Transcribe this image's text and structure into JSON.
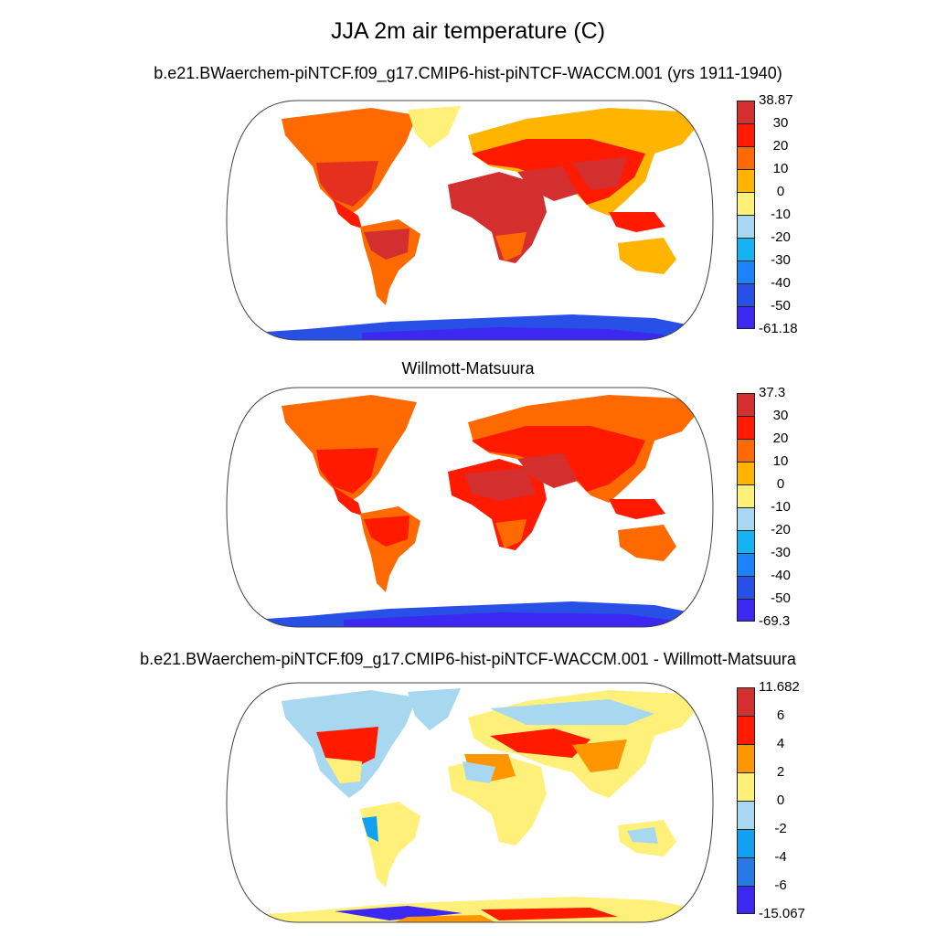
{
  "title": "JJA 2m air temperature (C)",
  "panels": [
    {
      "title": "b.e21.BWaerchem-piNTCF.f09_g17.CMIP6-hist-piNTCF-WACCM.001 (yrs 1911-1940)",
      "colorbar": {
        "labels": [
          "38.87",
          "30",
          "20",
          "10",
          "0",
          "-10",
          "-20",
          "-30",
          "-40",
          "-50",
          "-61.18"
        ],
        "colors": [
          "#d32f2f",
          "#ff1a00",
          "#ff6a00",
          "#ffb400",
          "#fff07a",
          "#a8d8f0",
          "#14b4f0",
          "#1e82ff",
          "#2850e6",
          "#3c28f0"
        ]
      }
    },
    {
      "title": "Willmott-Matsuura",
      "colorbar": {
        "labels": [
          "37.3",
          "30",
          "20",
          "10",
          "0",
          "-10",
          "-20",
          "-30",
          "-40",
          "-50",
          "-69.3"
        ],
        "colors": [
          "#d32f2f",
          "#ff1a00",
          "#ff6a00",
          "#ffb400",
          "#fff07a",
          "#a8d8f0",
          "#14b4f0",
          "#1e82ff",
          "#2850e6",
          "#3c28f0"
        ]
      }
    },
    {
      "title": "b.e21.BWaerchem-piNTCF.f09_g17.CMIP6-hist-piNTCF-WACCM.001 - Willmott-Matsuura",
      "colorbar": {
        "labels": [
          "11.682",
          "6",
          "4",
          "2",
          "0",
          "-2",
          "-4",
          "-6",
          "-15.067"
        ],
        "colors": [
          "#d32f2f",
          "#ff1a00",
          "#ff9600",
          "#fff07a",
          "#a8d8f0",
          "#14a0f0",
          "#2878e6",
          "#3c28f0"
        ]
      }
    }
  ]
}
